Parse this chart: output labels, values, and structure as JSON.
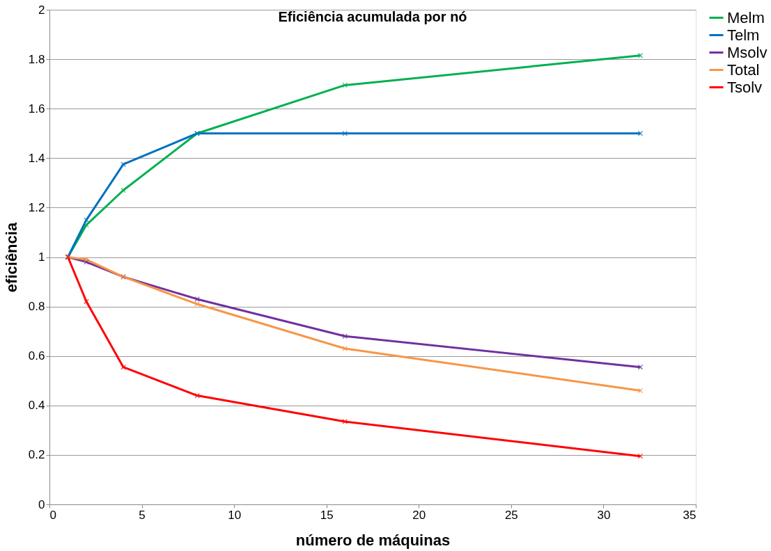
{
  "chart_data": {
    "type": "line",
    "title": "Eficiência acumulada por nó",
    "xlabel": "número de máquinas",
    "ylabel": "eficiência",
    "x": [
      1,
      2,
      4,
      8,
      16,
      32
    ],
    "series": [
      {
        "name": "Melm",
        "color": "#00b050",
        "values": [
          1,
          1.13,
          1.27,
          1.5,
          1.695,
          1.815
        ]
      },
      {
        "name": "Telm",
        "color": "#0070c0",
        "values": [
          1,
          1.15,
          1.375,
          1.5,
          1.5,
          1.5
        ]
      },
      {
        "name": "Msolv",
        "color": "#7030a0",
        "values": [
          1,
          0.98,
          0.92,
          0.83,
          0.68,
          0.555
        ]
      },
      {
        "name": "Total",
        "color": "#f79646",
        "values": [
          1,
          0.99,
          0.92,
          0.81,
          0.63,
          0.46
        ]
      },
      {
        "name": "Tsolv",
        "color": "#ff0000",
        "values": [
          1,
          0.82,
          0.555,
          0.44,
          0.335,
          0.195
        ]
      }
    ],
    "xlim": [
      0,
      35
    ],
    "xticks": [
      0,
      5,
      10,
      15,
      20,
      25,
      30,
      35
    ],
    "ylim": [
      0,
      2
    ],
    "yticks": [
      0,
      0.2,
      0.4,
      0.6,
      0.8,
      1,
      1.2,
      1.4,
      1.6,
      1.8,
      2
    ],
    "grid": "y",
    "legend": "right",
    "marker": "cross",
    "line_style": "solid"
  }
}
